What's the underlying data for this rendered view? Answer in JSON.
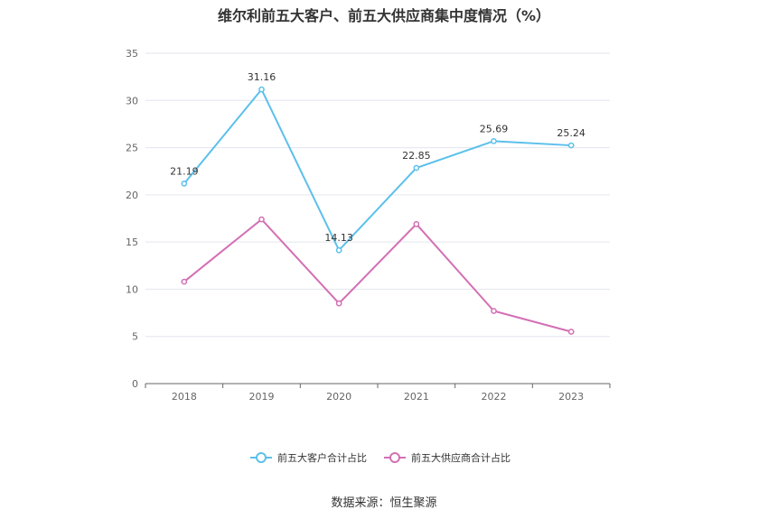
{
  "title": "维尔利前五大客户、前五大供应商集中度情况（%）",
  "source": "数据来源：恒生聚源",
  "chart_data": {
    "type": "line",
    "title": "维尔利前五大客户、前五大供应商集中度情况（%）",
    "xlabel": "",
    "ylabel": "",
    "categories": [
      "2018",
      "2019",
      "2020",
      "2021",
      "2022",
      "2023"
    ],
    "ylim": [
      0,
      35
    ],
    "yticks": [
      0,
      5,
      10,
      15,
      20,
      25,
      30,
      35
    ],
    "grid": true,
    "legend_position": "bottom-center",
    "series": [
      {
        "name": "前五大客户合计占比",
        "color": "#5bc0eb",
        "values": [
          21.19,
          31.16,
          14.13,
          22.85,
          25.69,
          25.24
        ],
        "labels": [
          "21.19",
          "31.16",
          "14.13",
          "22.85",
          "25.69",
          "25.24"
        ]
      },
      {
        "name": "前五大供应商合计占比",
        "color": "#d36fb4",
        "values": [
          10.8,
          17.4,
          8.5,
          16.9,
          7.7,
          5.5
        ]
      }
    ]
  }
}
